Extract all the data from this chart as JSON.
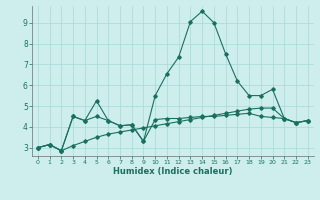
{
  "bg_color": "#ceeeed",
  "grid_color": "#a8d8d8",
  "line_color": "#1a7060",
  "xlabel": "Humidex (Indice chaleur)",
  "xlim": [
    -0.5,
    23.5
  ],
  "ylim": [
    2.6,
    9.8
  ],
  "yticks": [
    3,
    4,
    5,
    6,
    7,
    8,
    9
  ],
  "xticks": [
    0,
    1,
    2,
    3,
    4,
    5,
    6,
    7,
    8,
    9,
    10,
    11,
    12,
    13,
    14,
    15,
    16,
    17,
    18,
    19,
    20,
    21,
    22,
    23
  ],
  "line1_x": [
    0,
    1,
    2,
    3,
    4,
    5,
    6,
    7,
    8,
    9,
    10,
    11,
    12,
    13,
    14,
    15,
    16,
    17,
    18,
    19,
    20,
    21,
    22,
    23
  ],
  "line1_y": [
    3.0,
    3.15,
    2.85,
    4.5,
    4.3,
    5.25,
    4.3,
    4.05,
    4.1,
    3.3,
    5.5,
    6.55,
    7.35,
    9.05,
    9.55,
    9.0,
    7.5,
    6.2,
    5.5,
    5.5,
    5.8,
    4.4,
    4.2,
    4.3
  ],
  "line2_x": [
    0,
    1,
    2,
    3,
    4,
    5,
    6,
    7,
    8,
    9,
    10,
    11,
    12,
    13,
    14,
    15,
    16,
    17,
    18,
    19,
    20,
    21,
    22,
    23
  ],
  "line2_y": [
    3.0,
    3.15,
    2.85,
    4.5,
    4.3,
    4.5,
    4.3,
    4.05,
    4.1,
    3.3,
    4.35,
    4.4,
    4.4,
    4.45,
    4.5,
    4.5,
    4.55,
    4.6,
    4.65,
    4.5,
    4.45,
    4.4,
    4.2,
    4.3
  ],
  "line3_x": [
    0,
    1,
    2,
    3,
    4,
    5,
    6,
    7,
    8,
    9,
    10,
    11,
    12,
    13,
    14,
    15,
    16,
    17,
    18,
    19,
    20,
    21,
    22,
    23
  ],
  "line3_y": [
    3.0,
    3.15,
    2.85,
    3.1,
    3.3,
    3.5,
    3.65,
    3.75,
    3.85,
    3.95,
    4.05,
    4.15,
    4.25,
    4.35,
    4.45,
    4.55,
    4.65,
    4.75,
    4.85,
    4.9,
    4.9,
    4.4,
    4.2,
    4.3
  ]
}
